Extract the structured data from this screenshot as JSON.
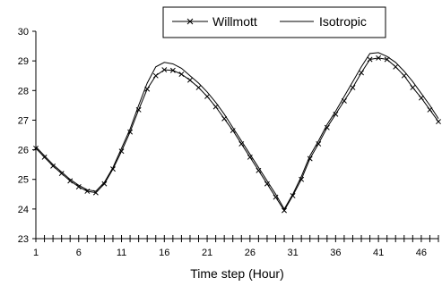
{
  "chart_data": {
    "type": "line",
    "title": "",
    "xlabel": "Time step (Hour)",
    "ylabel": "",
    "xlim": [
      1,
      48
    ],
    "ylim": [
      23,
      30
    ],
    "xticks": [
      "1",
      "6",
      "11",
      "16",
      "21",
      "26",
      "31",
      "36",
      "41",
      "46"
    ],
    "yticks": [
      "23",
      "24",
      "25",
      "26",
      "27",
      "28",
      "29",
      "30"
    ],
    "grid": false,
    "legend_position": "top-right",
    "x": [
      1,
      2,
      3,
      4,
      5,
      6,
      7,
      8,
      9,
      10,
      11,
      12,
      13,
      14,
      15,
      16,
      17,
      18,
      19,
      20,
      21,
      22,
      23,
      24,
      25,
      26,
      27,
      28,
      29,
      30,
      31,
      32,
      33,
      34,
      35,
      36,
      37,
      38,
      39,
      40,
      41,
      42,
      43,
      44,
      45,
      46,
      47,
      48
    ],
    "series": [
      {
        "name": "Willmott",
        "marker": "x",
        "values": [
          26.05,
          25.75,
          25.45,
          25.2,
          24.95,
          24.75,
          24.6,
          24.55,
          24.85,
          25.35,
          25.95,
          26.6,
          27.35,
          28.05,
          28.5,
          28.7,
          28.68,
          28.55,
          28.35,
          28.1,
          27.8,
          27.45,
          27.05,
          26.65,
          26.2,
          25.75,
          25.3,
          24.85,
          24.4,
          23.95,
          24.45,
          25.0,
          25.7,
          26.2,
          26.75,
          27.2,
          27.65,
          28.1,
          28.6,
          29.05,
          29.1,
          29.05,
          28.8,
          28.5,
          28.1,
          27.75,
          27.35,
          26.95
        ]
      },
      {
        "name": "Isotropic",
        "marker": "none",
        "values": [
          26.1,
          25.8,
          25.5,
          25.25,
          25.0,
          24.8,
          24.65,
          24.6,
          24.9,
          25.4,
          26.05,
          26.7,
          27.5,
          28.25,
          28.8,
          28.95,
          28.9,
          28.75,
          28.5,
          28.25,
          27.95,
          27.6,
          27.2,
          26.75,
          26.3,
          25.85,
          25.4,
          24.95,
          24.5,
          24.0,
          24.5,
          25.1,
          25.8,
          26.3,
          26.85,
          27.3,
          27.8,
          28.3,
          28.8,
          29.25,
          29.28,
          29.15,
          28.95,
          28.65,
          28.3,
          27.9,
          27.5,
          27.05
        ]
      }
    ]
  }
}
